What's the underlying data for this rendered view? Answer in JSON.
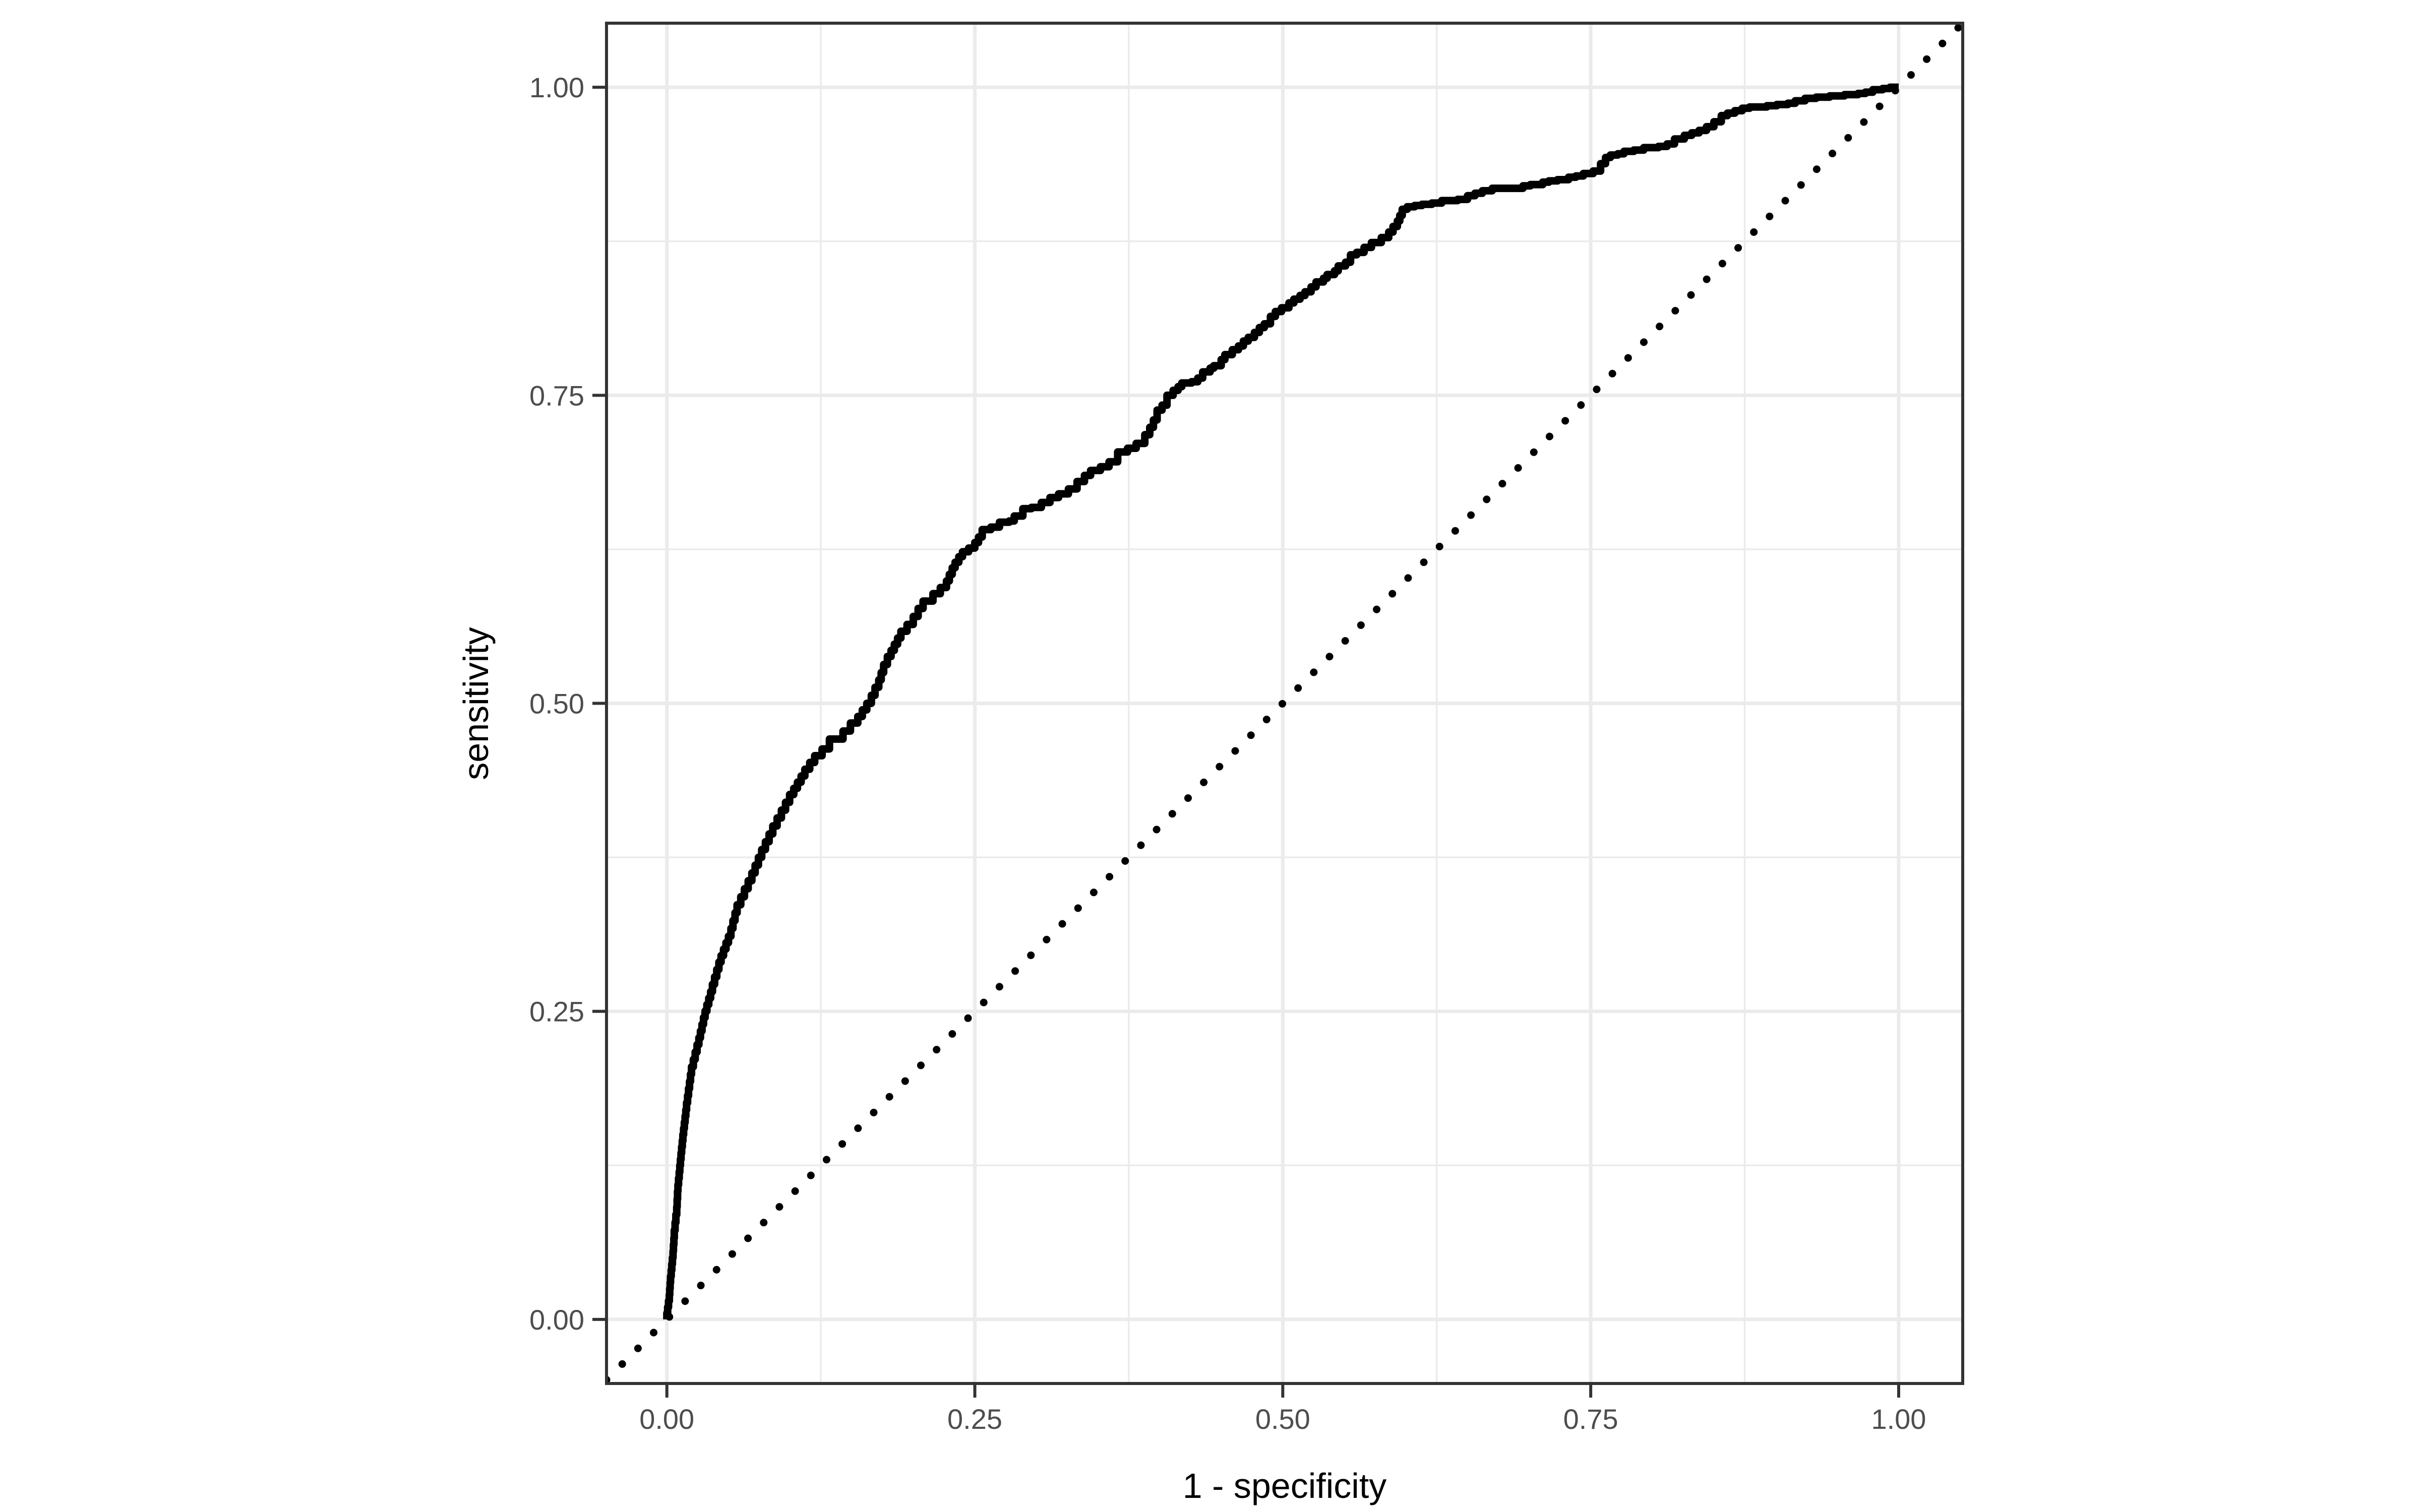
{
  "chart_data": {
    "type": "line",
    "title": "",
    "xlabel": "1 - specificity",
    "ylabel": "sensitivity",
    "x_ticks": {
      "values": [
        0,
        0.25,
        0.5,
        0.75,
        1
      ],
      "labels": [
        "0.00",
        "0.25",
        "0.50",
        "0.75",
        "1.00"
      ]
    },
    "y_ticks": {
      "values": [
        0,
        0.25,
        0.5,
        0.75,
        1
      ],
      "labels": [
        "0.00",
        "0.25",
        "0.50",
        "0.75",
        "1.00"
      ]
    },
    "minor_ticks": [
      0.125,
      0.375,
      0.625,
      0.875
    ],
    "xlim": [
      -0.049,
      1.052
    ],
    "ylim": [
      -0.052,
      1.052
    ],
    "grid": "on",
    "legend": "none",
    "series": [
      {
        "name": "ROC curve",
        "style": "step-solid",
        "color": "#000000",
        "points": [
          [
            0.0,
            0.0
          ],
          [
            0.002,
            0.015
          ],
          [
            0.003,
            0.03
          ],
          [
            0.005,
            0.05
          ],
          [
            0.006,
            0.066
          ],
          [
            0.008,
            0.085
          ],
          [
            0.009,
            0.104
          ],
          [
            0.011,
            0.125
          ],
          [
            0.013,
            0.145
          ],
          [
            0.016,
            0.17
          ],
          [
            0.02,
            0.199
          ],
          [
            0.026,
            0.223
          ],
          [
            0.031,
            0.245
          ],
          [
            0.037,
            0.266
          ],
          [
            0.044,
            0.29
          ],
          [
            0.052,
            0.311
          ],
          [
            0.057,
            0.33
          ],
          [
            0.063,
            0.343
          ],
          [
            0.069,
            0.356
          ],
          [
            0.077,
            0.375
          ],
          [
            0.086,
            0.394
          ],
          [
            0.093,
            0.407
          ],
          [
            0.103,
            0.426
          ],
          [
            0.112,
            0.441
          ],
          [
            0.12,
            0.452
          ],
          [
            0.132,
            0.463
          ],
          [
            0.143,
            0.471
          ],
          [
            0.155,
            0.484
          ],
          [
            0.166,
            0.5
          ],
          [
            0.172,
            0.513
          ],
          [
            0.176,
            0.525
          ],
          [
            0.182,
            0.538
          ],
          [
            0.19,
            0.553
          ],
          [
            0.2,
            0.564
          ],
          [
            0.208,
            0.577
          ],
          [
            0.216,
            0.583
          ],
          [
            0.222,
            0.589
          ],
          [
            0.227,
            0.594
          ],
          [
            0.234,
            0.61
          ],
          [
            0.24,
            0.619
          ],
          [
            0.245,
            0.623
          ],
          [
            0.25,
            0.626
          ],
          [
            0.256,
            0.635
          ],
          [
            0.263,
            0.641
          ],
          [
            0.27,
            0.643
          ],
          [
            0.278,
            0.647
          ],
          [
            0.282,
            0.648
          ],
          [
            0.289,
            0.652
          ],
          [
            0.296,
            0.658
          ],
          [
            0.304,
            0.659
          ],
          [
            0.311,
            0.663
          ],
          [
            0.318,
            0.667
          ],
          [
            0.326,
            0.67
          ],
          [
            0.333,
            0.674
          ],
          [
            0.339,
            0.68
          ],
          [
            0.344,
            0.685
          ],
          [
            0.352,
            0.689
          ],
          [
            0.359,
            0.692
          ],
          [
            0.366,
            0.696
          ],
          [
            0.374,
            0.704
          ],
          [
            0.381,
            0.707
          ],
          [
            0.388,
            0.711
          ],
          [
            0.392,
            0.718
          ],
          [
            0.398,
            0.73
          ],
          [
            0.402,
            0.738
          ],
          [
            0.406,
            0.742
          ],
          [
            0.411,
            0.75
          ],
          [
            0.415,
            0.754
          ],
          [
            0.418,
            0.757
          ],
          [
            0.426,
            0.76
          ],
          [
            0.431,
            0.761
          ],
          [
            0.435,
            0.764
          ],
          [
            0.441,
            0.769
          ],
          [
            0.444,
            0.772
          ],
          [
            0.45,
            0.774
          ],
          [
            0.453,
            0.779
          ],
          [
            0.459,
            0.783
          ],
          [
            0.464,
            0.787
          ],
          [
            0.468,
            0.79
          ],
          [
            0.472,
            0.794
          ],
          [
            0.477,
            0.797
          ],
          [
            0.481,
            0.801
          ],
          [
            0.485,
            0.805
          ],
          [
            0.49,
            0.808
          ],
          [
            0.494,
            0.814
          ],
          [
            0.499,
            0.818
          ],
          [
            0.505,
            0.821
          ],
          [
            0.509,
            0.825
          ],
          [
            0.514,
            0.828
          ],
          [
            0.518,
            0.831
          ],
          [
            0.523,
            0.834
          ],
          [
            0.527,
            0.838
          ],
          [
            0.533,
            0.842
          ],
          [
            0.536,
            0.845
          ],
          [
            0.542,
            0.848
          ],
          [
            0.545,
            0.851
          ],
          [
            0.551,
            0.855
          ],
          [
            0.555,
            0.858
          ],
          [
            0.56,
            0.864
          ],
          [
            0.566,
            0.866
          ],
          [
            0.572,
            0.87
          ],
          [
            0.58,
            0.874
          ],
          [
            0.586,
            0.878
          ],
          [
            0.593,
            0.887
          ],
          [
            0.597,
            0.896
          ],
          [
            0.601,
            0.901
          ],
          [
            0.607,
            0.903
          ],
          [
            0.613,
            0.904
          ],
          [
            0.621,
            0.905
          ],
          [
            0.629,
            0.906
          ],
          [
            0.642,
            0.908
          ],
          [
            0.65,
            0.909
          ],
          [
            0.656,
            0.912
          ],
          [
            0.662,
            0.914
          ],
          [
            0.67,
            0.916
          ],
          [
            0.684,
            0.918
          ],
          [
            0.695,
            0.918
          ],
          [
            0.701,
            0.92
          ],
          [
            0.711,
            0.921
          ],
          [
            0.716,
            0.923
          ],
          [
            0.723,
            0.924
          ],
          [
            0.732,
            0.925
          ],
          [
            0.738,
            0.927
          ],
          [
            0.744,
            0.928
          ],
          [
            0.752,
            0.93
          ],
          [
            0.758,
            0.932
          ],
          [
            0.762,
            0.938
          ],
          [
            0.766,
            0.943
          ],
          [
            0.772,
            0.945
          ],
          [
            0.777,
            0.946
          ],
          [
            0.785,
            0.948
          ],
          [
            0.793,
            0.949
          ],
          [
            0.805,
            0.951
          ],
          [
            0.812,
            0.952
          ],
          [
            0.818,
            0.954
          ],
          [
            0.826,
            0.958
          ],
          [
            0.832,
            0.961
          ],
          [
            0.838,
            0.963
          ],
          [
            0.844,
            0.965
          ],
          [
            0.85,
            0.968
          ],
          [
            0.856,
            0.972
          ],
          [
            0.861,
            0.977
          ],
          [
            0.867,
            0.979
          ],
          [
            0.873,
            0.981
          ],
          [
            0.879,
            0.983
          ],
          [
            0.886,
            0.984
          ],
          [
            0.893,
            0.984
          ],
          [
            0.901,
            0.985
          ],
          [
            0.91,
            0.986
          ],
          [
            0.916,
            0.987
          ],
          [
            0.924,
            0.989
          ],
          [
            0.933,
            0.991
          ],
          [
            0.944,
            0.992
          ],
          [
            0.956,
            0.993
          ],
          [
            0.967,
            0.994
          ],
          [
            0.973,
            0.995
          ],
          [
            0.979,
            0.996
          ],
          [
            0.987,
            0.998
          ],
          [
            0.993,
            0.999
          ],
          [
            1.0,
            1.0
          ]
        ]
      },
      {
        "name": "chance diagonal",
        "style": "dotted",
        "color": "#000000",
        "points": [
          [
            -0.049,
            -0.049
          ],
          [
            1.052,
            1.052
          ]
        ]
      }
    ]
  },
  "style": {
    "background": "#FFFFFF",
    "grid_color": "#EBEBEB",
    "panel_border_color": "#333333",
    "tick_color": "#333333",
    "tick_label_color": "#4D4D4D",
    "axis_title_color": "#000000"
  }
}
